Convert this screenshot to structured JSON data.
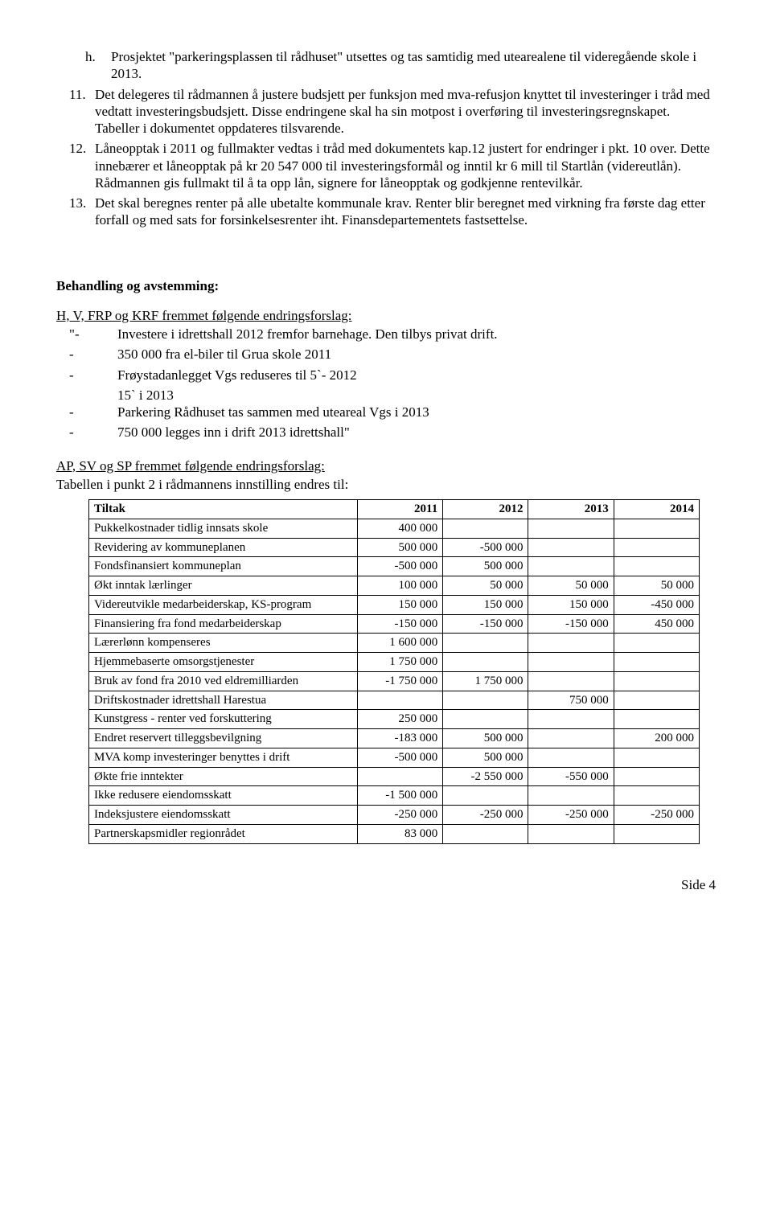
{
  "items": {
    "h": {
      "marker": "h.",
      "text": "Prosjektet \"parkeringsplassen til rådhuset\" utsettes og tas samtidig med utearealene til videregående skole i 2013."
    },
    "11": {
      "marker": "11.",
      "text": "Det delegeres til rådmannen å justere budsjett per funksjon med mva-refusjon knyttet til investeringer i tråd med vedtatt investeringsbudsjett. Disse endringene skal ha sin motpost i overføring til investeringsregnskapet. Tabeller i dokumentet oppdateres tilsvarende."
    },
    "12": {
      "marker": "12.",
      "text": "Låneopptak i 2011 og fullmakter vedtas i tråd med dokumentets kap.12 justert for endringer i pkt. 10 over. Dette innebærer et låneopptak på kr 20 547 000 til investeringsformål og inntil kr 6 mill til Startlån (videreutlån). Rådmannen gis fullmakt til å ta opp lån, signere for låneopptak og godkjenne rentevilkår."
    },
    "13": {
      "marker": "13.",
      "text": "Det skal beregnes renter på alle ubetalte kommunale krav. Renter blir beregnet med virkning fra første dag etter forfall og med sats for forsinkelsesrenter iht. Finansdepartementets fastsettelse."
    }
  },
  "section_heading": "Behandling og avstemming:",
  "group1": {
    "heading": "H, V, FRP og KRF fremmet følgende endringsforslag:",
    "lines": [
      {
        "marker": "\"-",
        "text": "Investere i idrettshall 2012 fremfor barnehage. Den tilbys privat drift."
      },
      {
        "marker": "-",
        "text": "350 000 fra el-biler til Grua skole 2011"
      },
      {
        "marker": "-",
        "text": "Frøystadanlegget Vgs reduseres til 5`- 2012"
      },
      {
        "marker": "",
        "text": "15` i 2013"
      },
      {
        "marker": "-",
        "text": "Parkering Rådhuset tas sammen med uteareal Vgs i 2013"
      },
      {
        "marker": "-",
        "text": "750 000 legges inn i drift 2013 idrettshall\""
      }
    ]
  },
  "group2": {
    "heading": "AP, SV og SP fremmet følgende endringsforslag:",
    "subtext": "Tabellen i punkt 2 i rådmannens innstilling endres til:"
  },
  "table": {
    "columns": [
      "Tiltak",
      "2011",
      "2012",
      "2013",
      "2014"
    ],
    "col_widths": [
      "44%",
      "14%",
      "14%",
      "14%",
      "14%"
    ],
    "rows": [
      [
        "Pukkelkostnader tidlig innsats skole",
        "400 000",
        "",
        "",
        ""
      ],
      [
        "Revidering av kommuneplanen",
        "500 000",
        "-500 000",
        "",
        ""
      ],
      [
        "Fondsfinansiert kommuneplan",
        "-500 000",
        "500 000",
        "",
        ""
      ],
      [
        "Økt inntak lærlinger",
        "100 000",
        "50 000",
        "50 000",
        "50 000"
      ],
      [
        "Videreutvikle medarbeiderskap, KS-program",
        "150 000",
        "150 000",
        "150 000",
        "-450 000"
      ],
      [
        "Finansiering fra fond medarbeiderskap",
        "-150 000",
        "-150 000",
        "-150 000",
        "450 000"
      ],
      [
        "Lærerlønn kompenseres",
        "1 600 000",
        "",
        "",
        ""
      ],
      [
        "Hjemmebaserte omsorgstjenester",
        "1 750 000",
        "",
        "",
        ""
      ],
      [
        "Bruk av fond fra 2010 ved eldremilliarden",
        "-1 750 000",
        "1 750 000",
        "",
        ""
      ],
      [
        "Driftskostnader idrettshall Harestua",
        "",
        "",
        "750 000",
        ""
      ],
      [
        "Kunstgress - renter ved forskuttering",
        "250 000",
        "",
        "",
        ""
      ],
      [
        "Endret reservert tilleggsbevilgning",
        "-183 000",
        "500 000",
        "",
        "200 000"
      ],
      [
        "MVA komp investeringer benyttes i drift",
        "-500 000",
        "500 000",
        "",
        ""
      ],
      [
        "Økte frie inntekter",
        "",
        "-2 550 000",
        "-550 000",
        ""
      ],
      [
        "Ikke redusere eiendomsskatt",
        "-1 500 000",
        "",
        "",
        ""
      ],
      [
        "Indeksjustere eiendomsskatt",
        "-250 000",
        "-250 000",
        "-250 000",
        "-250 000"
      ],
      [
        "Partnerskapsmidler regionrådet",
        "83 000",
        "",
        "",
        ""
      ]
    ]
  },
  "footer": "Side 4"
}
